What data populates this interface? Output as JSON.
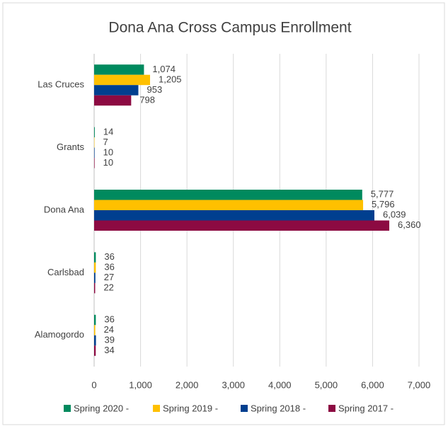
{
  "chart_data": {
    "type": "hbar",
    "title": "Dona Ana Cross Campus Enrollment",
    "categories": [
      "Las Cruces",
      "Grants",
      "Dona Ana",
      "Carlsbad",
      "Alamogordo"
    ],
    "series": [
      {
        "name": "Spring 2020 -",
        "color": "#008a5e",
        "values": [
          1074,
          14,
          5777,
          36,
          36
        ],
        "value_labels": [
          "1,074",
          "14",
          "5,777",
          "36",
          "36"
        ]
      },
      {
        "name": "Spring 2019 -",
        "color": "#ffc000",
        "values": [
          1205,
          7,
          5796,
          36,
          24
        ],
        "value_labels": [
          "1,205",
          "7",
          "5,796",
          "36",
          "24"
        ]
      },
      {
        "name": "Spring 2018 -",
        "color": "#003f8f",
        "values": [
          953,
          10,
          6039,
          27,
          39
        ],
        "value_labels": [
          "953",
          "10",
          "6,039",
          "27",
          "39"
        ]
      },
      {
        "name": "Spring 2017 -",
        "color": "#8c0a42",
        "values": [
          798,
          10,
          6360,
          22,
          34
        ],
        "value_labels": [
          "798",
          "10",
          "6,360",
          "22",
          "34"
        ]
      }
    ],
    "xlim": [
      0,
      7000
    ],
    "xticks": [
      0,
      {
        "value": 1000,
        "label": "1,000"
      },
      {
        "value": 2000,
        "label": "2,000"
      },
      {
        "value": 3000,
        "label": "3,000"
      },
      {
        "value": 4000,
        "label": "4,000"
      },
      {
        "value": 5000,
        "label": "5,000"
      },
      {
        "value": 6000,
        "label": "6,000"
      },
      {
        "value": 7000,
        "label": "7,000"
      }
    ],
    "grid": true,
    "legend": "bottom"
  }
}
